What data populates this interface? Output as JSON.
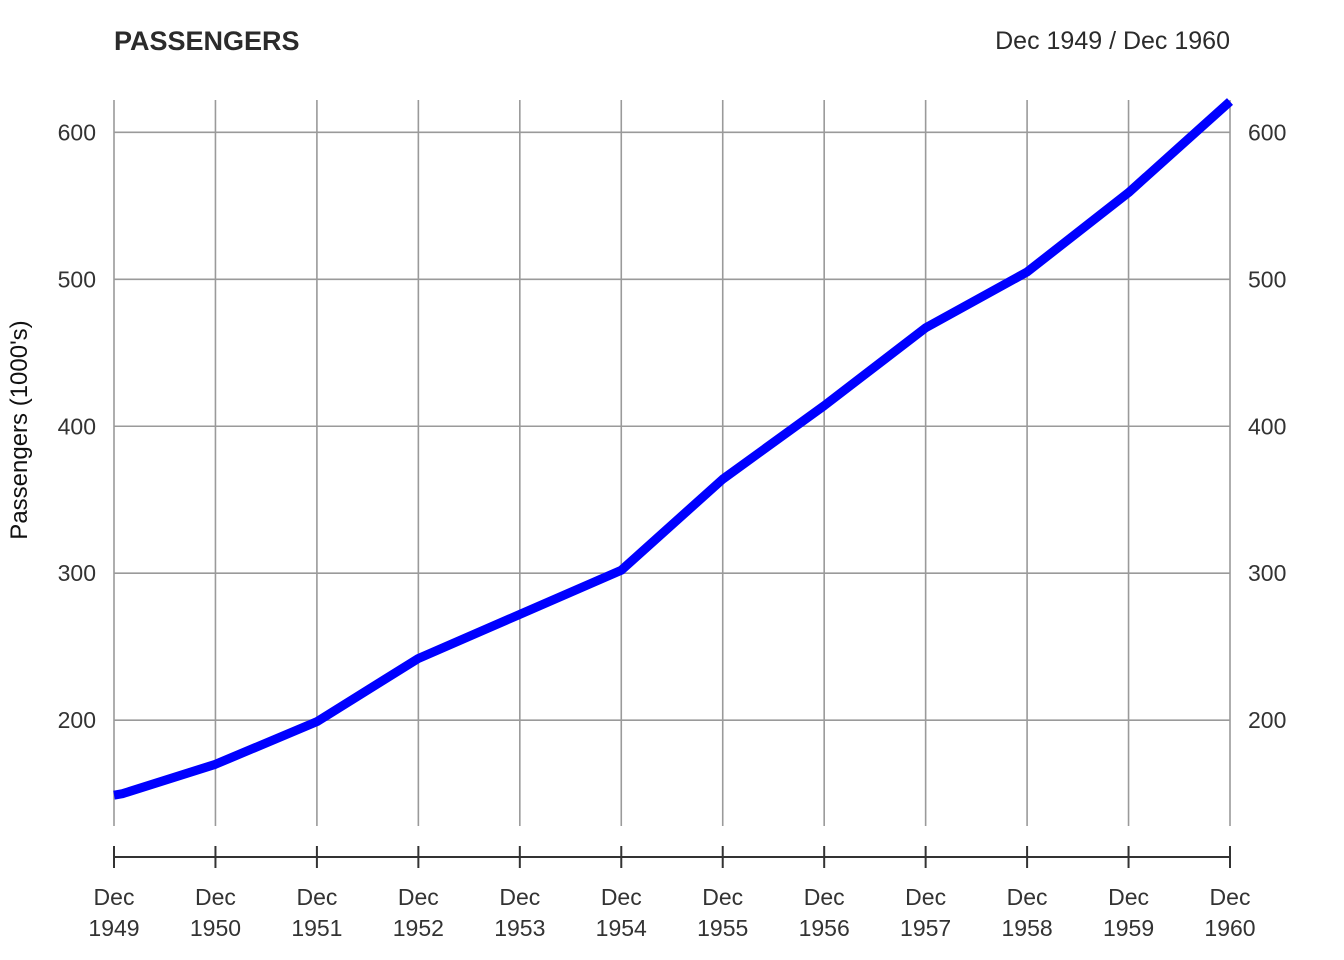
{
  "header": {
    "title": "PASSENGERS",
    "date_range": "Dec 1949 / Dec 1960"
  },
  "chart_data": {
    "type": "line",
    "title": "PASSENGERS",
    "subtitle": "Dec 1949 / Dec 1960",
    "xlabel": "",
    "ylabel": "Passengers (1000's)",
    "x_ticks": [
      {
        "month": "Dec",
        "year": "1949"
      },
      {
        "month": "Dec",
        "year": "1950"
      },
      {
        "month": "Dec",
        "year": "1951"
      },
      {
        "month": "Dec",
        "year": "1952"
      },
      {
        "month": "Dec",
        "year": "1953"
      },
      {
        "month": "Dec",
        "year": "1954"
      },
      {
        "month": "Dec",
        "year": "1955"
      },
      {
        "month": "Dec",
        "year": "1956"
      },
      {
        "month": "Dec",
        "year": "1957"
      },
      {
        "month": "Dec",
        "year": "1958"
      },
      {
        "month": "Dec",
        "year": "1959"
      },
      {
        "month": "Dec",
        "year": "1960"
      }
    ],
    "y_ticks": [
      200,
      300,
      400,
      500,
      600
    ],
    "ylim": [
      128,
      622
    ],
    "grid": true,
    "series_color": "#0000ff",
    "series": [
      {
        "x": [
          "1949-12",
          "1950-01",
          "1950-12",
          "1951-12",
          "1952-12",
          "1953-12",
          "1954-12",
          "1955-12",
          "1956-12",
          "1957-12",
          "1958-12",
          "1959-12",
          "1960-12"
        ],
        "values": [
          149,
          150,
          170,
          199,
          242,
          272,
          302,
          364,
          414,
          467,
          505,
          559,
          621
        ]
      }
    ]
  }
}
